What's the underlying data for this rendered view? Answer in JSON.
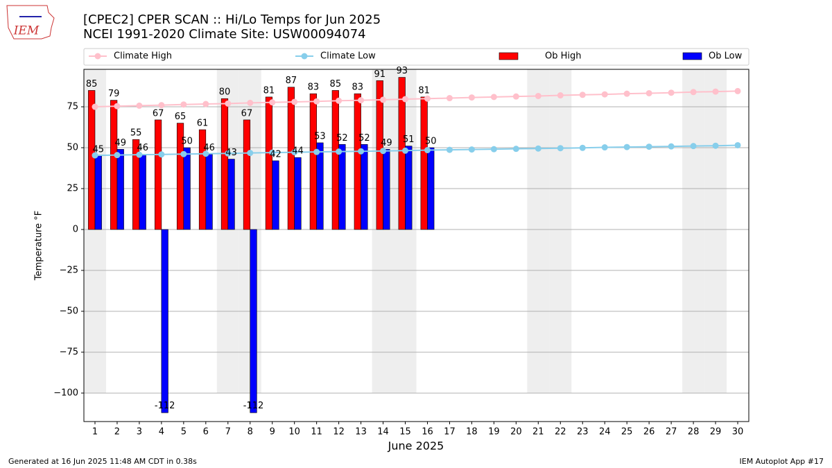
{
  "logo": "IEM",
  "chart_data": {
    "type": "bar",
    "title": "[CPEC2] CPER SCAN :: Hi/Lo Temps for Jun 2025",
    "subtitle": "NCEI 1991-2020 Climate Site: USW00094074",
    "x_label": "June 2025",
    "y_label": "Temperature °F",
    "x": [
      1,
      2,
      3,
      4,
      5,
      6,
      7,
      8,
      9,
      10,
      11,
      12,
      13,
      14,
      15,
      16,
      17,
      18,
      19,
      20,
      21,
      22,
      23,
      24,
      25,
      26,
      27,
      28,
      29,
      30
    ],
    "xlim": [
      0.5,
      30.5
    ],
    "ylim": [
      -117.4,
      97.9
    ],
    "yticks": [
      {
        "value": -100,
        "label": "−100"
      },
      {
        "value": -75,
        "label": "−75"
      },
      {
        "value": -50,
        "label": "−50"
      },
      {
        "value": -25,
        "label": "−25"
      },
      0,
      25,
      50,
      75
    ],
    "grid": true,
    "legend": "top",
    "shaded_days": [
      1,
      7,
      8,
      14,
      15,
      21,
      22,
      28,
      29
    ],
    "shade_bottom": -100,
    "series": [
      {
        "name": "Climate High",
        "type": "line",
        "color": "#ffc0cb",
        "values": [
          75.0,
          75.4,
          75.7,
          76.0,
          76.4,
          76.7,
          77.0,
          77.4,
          77.7,
          78.0,
          78.3,
          78.7,
          79.0,
          79.3,
          79.7,
          80.0,
          80.3,
          80.7,
          81.0,
          81.3,
          81.6,
          82.0,
          82.3,
          82.6,
          83.0,
          83.3,
          83.6,
          84.0,
          84.3,
          84.6
        ]
      },
      {
        "name": "Climate Low",
        "type": "line",
        "color": "#87ceeb",
        "values": [
          45.3,
          45.5,
          45.7,
          45.9,
          46.1,
          46.3,
          46.5,
          46.8,
          47.0,
          47.2,
          47.4,
          47.6,
          47.8,
          48.0,
          48.2,
          48.5,
          48.7,
          48.9,
          49.1,
          49.3,
          49.5,
          49.7,
          49.9,
          50.2,
          50.4,
          50.6,
          50.8,
          51.0,
          51.2,
          51.5
        ]
      },
      {
        "name": "Ob High",
        "type": "bar",
        "color": "#ff0000",
        "offset": -0.15,
        "values": [
          85,
          79,
          55,
          67,
          65,
          61,
          80,
          67,
          81,
          87,
          83,
          85,
          83,
          91,
          93,
          81,
          null,
          null,
          null,
          null,
          null,
          null,
          null,
          null,
          null,
          null,
          null,
          null,
          null,
          null
        ]
      },
      {
        "name": "Ob Low",
        "type": "bar",
        "color": "#0000ff",
        "offset": 0.15,
        "values": [
          45,
          49,
          46,
          -112,
          50,
          46,
          43,
          -112,
          42,
          44,
          53,
          52,
          52,
          49,
          51,
          50,
          null,
          null,
          null,
          null,
          null,
          null,
          null,
          null,
          null,
          null,
          null,
          null,
          null,
          null
        ]
      }
    ]
  },
  "footer_left": "Generated at 16 Jun 2025 11:48 AM CDT in 0.38s",
  "footer_right": "IEM Autoplot App #17"
}
